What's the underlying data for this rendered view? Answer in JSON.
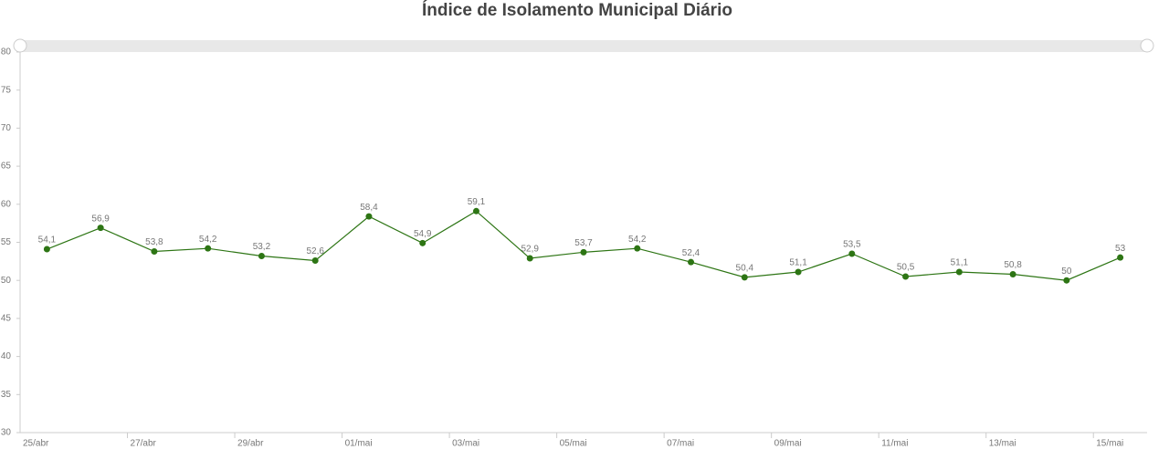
{
  "chart_data": {
    "type": "line",
    "title": "Índice de Isolamento Municipal Diário",
    "categories": [
      "25/abr",
      null,
      "27/abr",
      null,
      "29/abr",
      null,
      "01/mai",
      null,
      "03/mai",
      null,
      "05/mai",
      null,
      "07/mai",
      null,
      "09/mai",
      null,
      "11/mai",
      null,
      "13/mai",
      null,
      "15/mai"
    ],
    "series": [
      {
        "name": "Índice",
        "color": "#2d7514",
        "values": [
          54.1,
          56.9,
          53.8,
          54.2,
          53.2,
          52.6,
          58.4,
          54.9,
          59.1,
          52.9,
          53.7,
          54.2,
          52.4,
          50.4,
          51.1,
          53.5,
          50.5,
          51.1,
          50.8,
          50,
          53
        ],
        "value_labels": [
          "54,1",
          "56,9",
          "53,8",
          "54,2",
          "53,2",
          "52,6",
          "58,4",
          "54,9",
          "59,1",
          "52,9",
          "53,7",
          "54,2",
          "52,4",
          "50,4",
          "51,1",
          "53,5",
          "50,5",
          "51,1",
          "50,8",
          "50",
          "53"
        ]
      }
    ],
    "ylim": [
      30,
      80
    ],
    "yticks": [
      30,
      35,
      40,
      45,
      50,
      55,
      60,
      65,
      70,
      75,
      80
    ],
    "grid": false
  }
}
